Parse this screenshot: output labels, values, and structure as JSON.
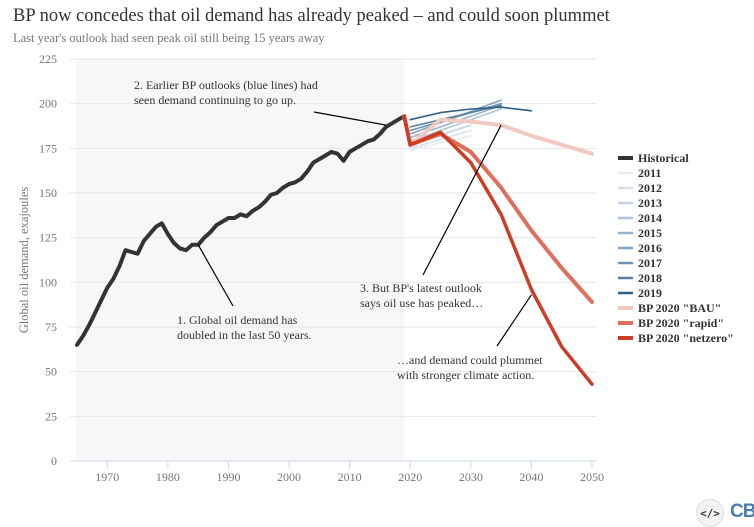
{
  "header": {
    "title": "BP now concedes that oil demand has already peaked – and could soon plummet",
    "subtitle": "Last year's outlook had seen peak oil still being 15 years away"
  },
  "footer": {
    "embed_icon": "code-embed-icon",
    "embed_glyph": "</>",
    "brand": "CB"
  },
  "colors": {
    "historical": "#333333",
    "bau": "#f2c9c0",
    "rapid": "#dd6f5c",
    "netzero": "#cc3d24",
    "grid": "#e6e6e6",
    "shade": "#f7f7f7",
    "axis": "#ccd6eb"
  },
  "chart_data": {
    "type": "line",
    "title": "BP now concedes that oil demand has already peaked – and could soon plummet",
    "subtitle": "Last year's outlook had seen peak oil still being 15 years away",
    "xlabel": "",
    "ylabel": "Global oil demand, exajoules",
    "xlim": [
      1965,
      2050
    ],
    "ylim": [
      0,
      225
    ],
    "x_ticks": [
      1970,
      1980,
      1990,
      2000,
      2010,
      2020,
      2030,
      2040,
      2050
    ],
    "y_ticks": [
      0,
      25,
      50,
      75,
      100,
      125,
      150,
      175,
      200,
      225
    ],
    "grid": true,
    "shaded_range": [
      1965,
      2019
    ],
    "legend_position": "right",
    "series": [
      {
        "name": "Historical",
        "color": "#333333",
        "x": [
          1965,
          1966,
          1967,
          1968,
          1969,
          1970,
          1971,
          1972,
          1973,
          1974,
          1975,
          1976,
          1977,
          1978,
          1979,
          1980,
          1981,
          1982,
          1983,
          1984,
          1985,
          1986,
          1987,
          1988,
          1989,
          1990,
          1991,
          1992,
          1993,
          1994,
          1995,
          1996,
          1997,
          1998,
          1999,
          2000,
          2001,
          2002,
          2003,
          2004,
          2005,
          2006,
          2007,
          2008,
          2009,
          2010,
          2011,
          2012,
          2013,
          2014,
          2015,
          2016,
          2017,
          2018,
          2019
        ],
        "values": [
          65,
          70,
          76,
          83,
          90,
          97,
          102,
          109,
          118,
          117,
          116,
          123,
          127,
          131,
          133,
          127,
          122,
          119,
          118,
          121,
          121,
          125,
          128,
          132,
          134,
          136,
          136,
          138,
          137,
          140,
          142,
          145,
          149,
          150,
          153,
          155,
          156,
          158,
          162,
          167,
          169,
          171,
          173,
          172,
          168,
          173,
          175,
          177,
          179,
          180,
          183,
          187,
          189,
          191,
          193
        ]
      },
      {
        "name": "2011",
        "color": "#e6ecf2",
        "x": [
          2020,
          2030
        ],
        "values": [
          174,
          182
        ]
      },
      {
        "name": "2012",
        "color": "#d5dfe9",
        "x": [
          2020,
          2030
        ],
        "values": [
          175,
          185
        ]
      },
      {
        "name": "2013",
        "color": "#c3d3e0",
        "x": [
          2020,
          2030
        ],
        "values": [
          177,
          188
        ]
      },
      {
        "name": "2014",
        "color": "#aec4d6",
        "x": [
          2020,
          2035
        ],
        "values": [
          179,
          197
        ]
      },
      {
        "name": "2015",
        "color": "#98b4cb",
        "x": [
          2020,
          2035
        ],
        "values": [
          181,
          199
        ]
      },
      {
        "name": "2016",
        "color": "#83a4bf",
        "x": [
          2020,
          2035
        ],
        "values": [
          183,
          202
        ]
      },
      {
        "name": "2017",
        "color": "#6d93b2",
        "x": [
          2020,
          2035
        ],
        "values": [
          185,
          200
        ]
      },
      {
        "name": "2018",
        "color": "#55809f",
        "x": [
          2020,
          2035
        ],
        "values": [
          187,
          199
        ]
      },
      {
        "name": "2019",
        "color": "#2e5f87",
        "x": [
          2020,
          2025,
          2030,
          2035,
          2040
        ],
        "values": [
          191,
          195,
          197,
          198,
          196
        ]
      },
      {
        "name": "BP 2020 \"BAU\"",
        "color": "#f2c9c0",
        "x": [
          2019,
          2020,
          2025,
          2030,
          2035,
          2040,
          2050
        ],
        "values": [
          193,
          177,
          191,
          190,
          188,
          182,
          172
        ]
      },
      {
        "name": "BP 2020 \"rapid\"",
        "color": "#dd6f5c",
        "x": [
          2019,
          2020,
          2025,
          2030,
          2035,
          2040,
          2045,
          2050
        ],
        "values": [
          193,
          177,
          183,
          173,
          153,
          129,
          108,
          89
        ]
      },
      {
        "name": "BP 2020 \"netzero\"",
        "color": "#cc3d24",
        "x": [
          2019,
          2020,
          2025,
          2030,
          2035,
          2040,
          2045,
          2050
        ],
        "values": [
          193,
          177,
          184,
          167,
          138,
          96,
          64,
          43
        ]
      }
    ],
    "annotations": [
      {
        "lines": [
          "1. Global oil demand has",
          "doubled in the last 50 years."
        ],
        "points_to": [
          1985,
          121
        ]
      },
      {
        "lines": [
          "2. Earlier BP outlooks (blue lines) had",
          "seen demand continuing to go up."
        ],
        "points_to": [
          2016,
          188
        ]
      },
      {
        "lines": [
          "3. But BP's latest outlook",
          "says oil use has peaked…"
        ],
        "points_to": [
          2035,
          188
        ]
      },
      {
        "lines": [
          "…and demand could plummet",
          "with stronger climate action."
        ],
        "points_to": [
          2040,
          93
        ]
      }
    ]
  }
}
